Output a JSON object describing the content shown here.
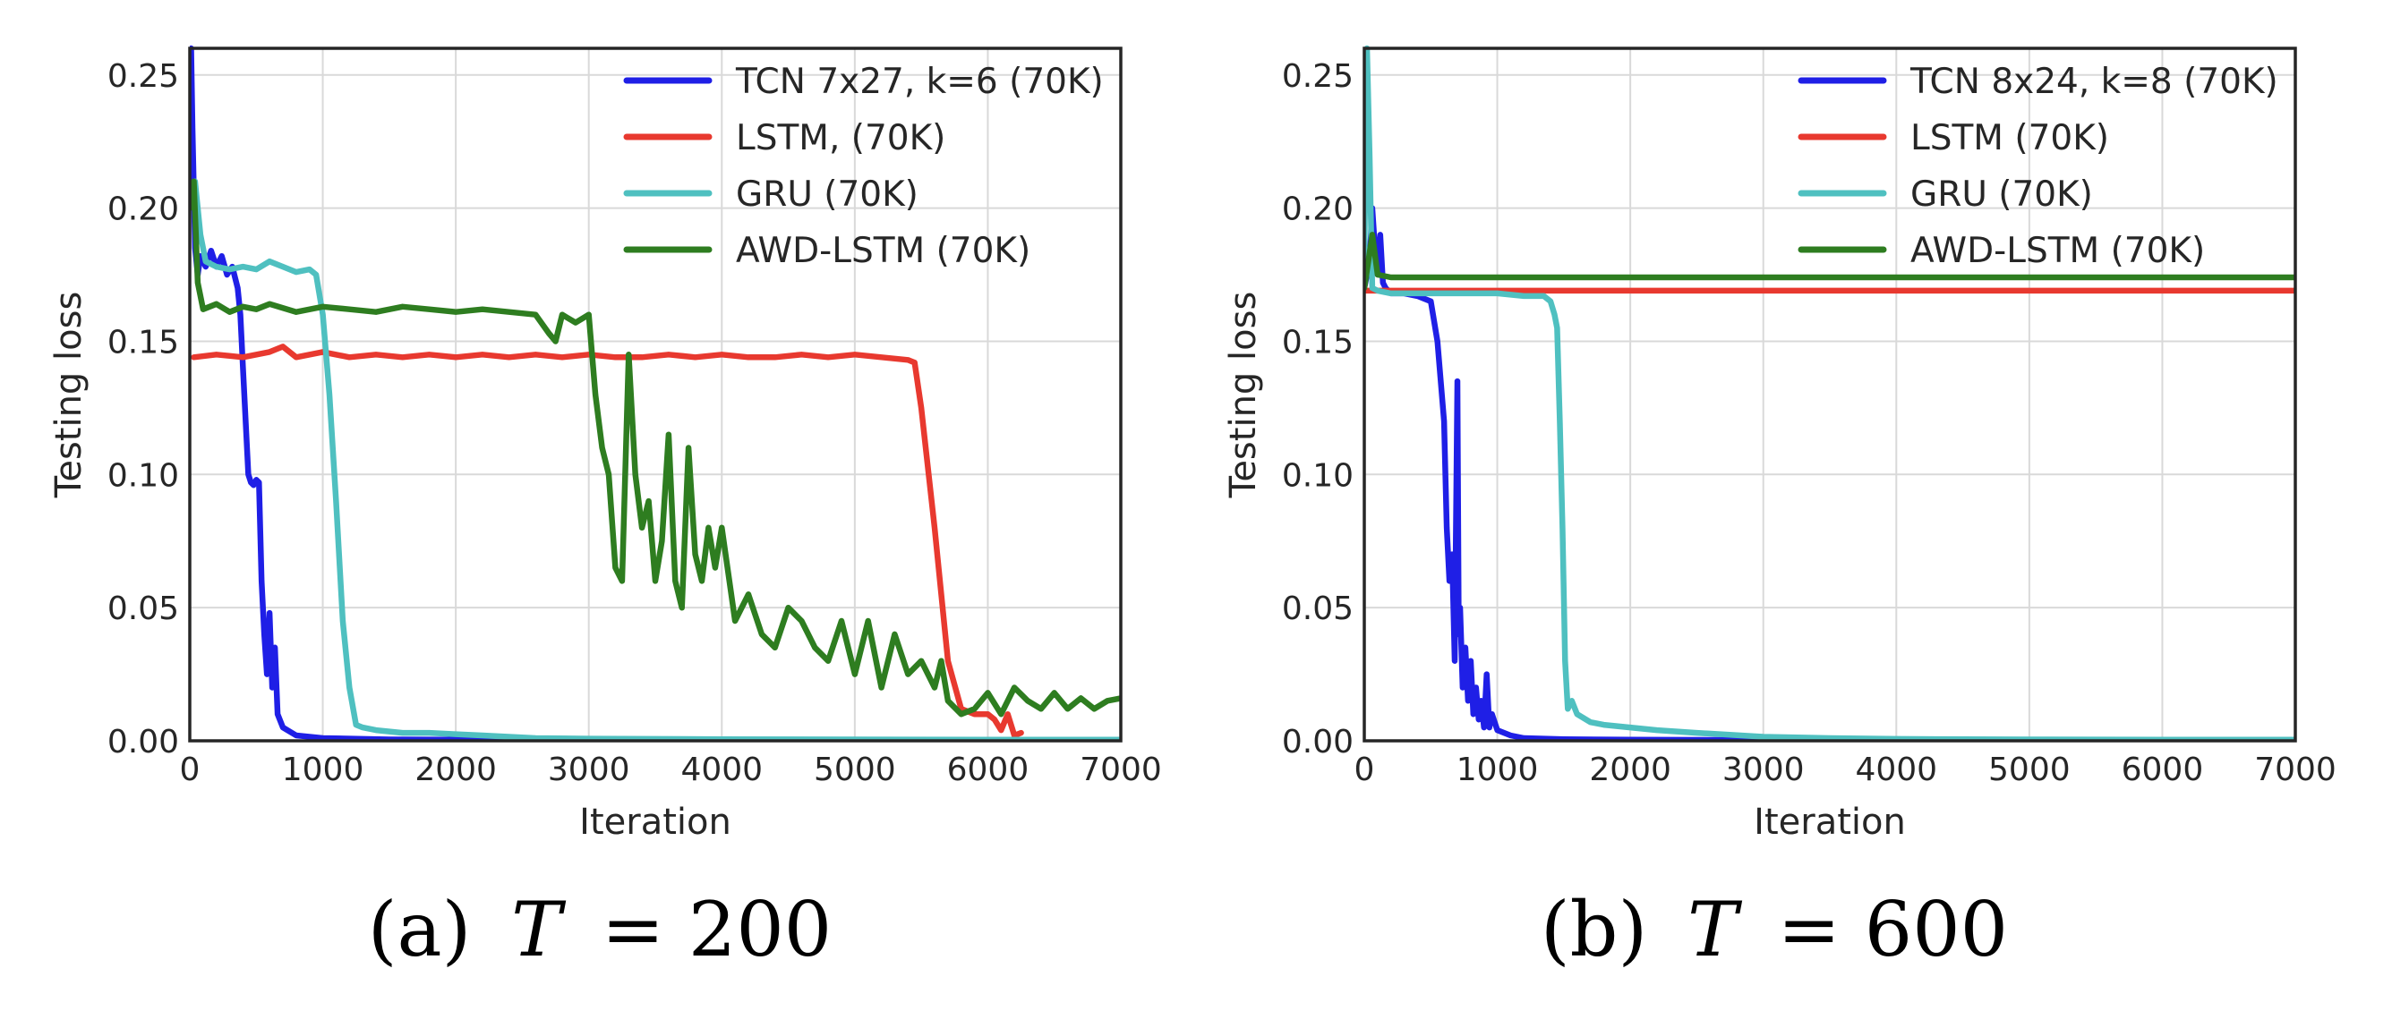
{
  "chart_data": [
    {
      "type": "line",
      "caption": "(a) T = 200",
      "caption_prefix": "(a)",
      "caption_symbol": "T",
      "caption_eq": "= 200",
      "xlabel": "Iteration",
      "ylabel": "Testing loss",
      "xlim": [
        0,
        7000
      ],
      "ylim": [
        0,
        0.26
      ],
      "xticks": [
        0,
        1000,
        2000,
        3000,
        4000,
        5000,
        6000,
        7000
      ],
      "yticks": [
        0.0,
        0.05,
        0.1,
        0.15,
        0.2,
        0.25
      ],
      "xtick_labels": [
        "0",
        "1000",
        "2000",
        "3000",
        "4000",
        "5000",
        "6000",
        "7000"
      ],
      "ytick_labels": [
        "0.00",
        "0.05",
        "0.10",
        "0.15",
        "0.20",
        "0.25"
      ],
      "grid": true,
      "legend_position": "top-right",
      "series": [
        {
          "name": "TCN 7x27, k=6 (70K)",
          "color": "#1f1fe6",
          "x": [
            0,
            10,
            20,
            40,
            60,
            80,
            120,
            160,
            200,
            240,
            280,
            320,
            360,
            380,
            400,
            420,
            440,
            460,
            480,
            500,
            520,
            540,
            560,
            580,
            600,
            620,
            640,
            660,
            700,
            800,
            1000,
            1500,
            2000,
            3000,
            4000,
            5000,
            6000,
            7000
          ],
          "y": [
            0.2,
            0.26,
            0.23,
            0.185,
            0.175,
            0.182,
            0.178,
            0.184,
            0.178,
            0.182,
            0.175,
            0.178,
            0.17,
            0.16,
            0.14,
            0.12,
            0.1,
            0.097,
            0.096,
            0.098,
            0.097,
            0.06,
            0.04,
            0.025,
            0.048,
            0.02,
            0.035,
            0.01,
            0.005,
            0.002,
            0.001,
            0.0005,
            0.0004,
            0.0003,
            0.0002,
            0.0002,
            0.0002,
            0.0002
          ]
        },
        {
          "name": "LSTM, (70K)",
          "color": "#e8392f",
          "x": [
            30,
            200,
            400,
            600,
            700,
            800,
            1000,
            1200,
            1400,
            1600,
            1800,
            2000,
            2200,
            2400,
            2600,
            2800,
            3000,
            3200,
            3400,
            3600,
            3800,
            4000,
            4200,
            4400,
            4600,
            4800,
            5000,
            5200,
            5400,
            5450,
            5500,
            5600,
            5700,
            5800,
            5900,
            6000,
            6050,
            6100,
            6150,
            6200,
            6250
          ],
          "y": [
            0.144,
            0.145,
            0.144,
            0.146,
            0.148,
            0.144,
            0.146,
            0.144,
            0.145,
            0.144,
            0.145,
            0.144,
            0.145,
            0.144,
            0.145,
            0.144,
            0.145,
            0.144,
            0.144,
            0.145,
            0.144,
            0.145,
            0.144,
            0.144,
            0.145,
            0.144,
            0.145,
            0.144,
            0.143,
            0.142,
            0.125,
            0.08,
            0.03,
            0.012,
            0.01,
            0.01,
            0.008,
            0.004,
            0.01,
            0.002,
            0.003
          ]
        },
        {
          "name": "GRU (70K)",
          "color": "#4fc0c0",
          "x": [
            0,
            40,
            80,
            120,
            200,
            300,
            400,
            500,
            600,
            700,
            800,
            900,
            950,
            1000,
            1050,
            1100,
            1150,
            1200,
            1250,
            1300,
            1400,
            1600,
            1800,
            2000,
            2200,
            2400,
            2600,
            3000,
            4000,
            5000,
            6000,
            7000
          ],
          "y": [
            0.2,
            0.21,
            0.19,
            0.18,
            0.178,
            0.177,
            0.178,
            0.177,
            0.18,
            0.178,
            0.176,
            0.177,
            0.175,
            0.16,
            0.13,
            0.09,
            0.045,
            0.02,
            0.006,
            0.005,
            0.004,
            0.003,
            0.003,
            0.0025,
            0.002,
            0.0015,
            0.001,
            0.0008,
            0.0006,
            0.0005,
            0.0004,
            0.0004
          ]
        },
        {
          "name": "AWD-LSTM (70K)",
          "color": "#2e7d20",
          "x": [
            0,
            30,
            60,
            100,
            200,
            300,
            400,
            500,
            600,
            800,
            1000,
            1200,
            1400,
            1600,
            1800,
            2000,
            2200,
            2400,
            2600,
            2700,
            2750,
            2800,
            2900,
            3000,
            3050,
            3100,
            3150,
            3200,
            3250,
            3300,
            3350,
            3400,
            3450,
            3500,
            3550,
            3600,
            3650,
            3700,
            3750,
            3800,
            3850,
            3900,
            3950,
            4000,
            4100,
            4200,
            4300,
            4400,
            4500,
            4600,
            4700,
            4800,
            4900,
            5000,
            5100,
            5200,
            5300,
            5400,
            5500,
            5600,
            5650,
            5700,
            5800,
            5900,
            6000,
            6100,
            6200,
            6300,
            6400,
            6500,
            6600,
            6700,
            6800,
            6900,
            7000
          ],
          "y": [
            0.2,
            0.21,
            0.172,
            0.162,
            0.164,
            0.161,
            0.163,
            0.162,
            0.164,
            0.161,
            0.163,
            0.162,
            0.161,
            0.163,
            0.162,
            0.161,
            0.162,
            0.161,
            0.16,
            0.153,
            0.15,
            0.16,
            0.157,
            0.16,
            0.13,
            0.11,
            0.1,
            0.065,
            0.06,
            0.145,
            0.1,
            0.08,
            0.09,
            0.06,
            0.075,
            0.115,
            0.06,
            0.05,
            0.11,
            0.07,
            0.06,
            0.08,
            0.065,
            0.08,
            0.045,
            0.055,
            0.04,
            0.035,
            0.05,
            0.045,
            0.035,
            0.03,
            0.045,
            0.025,
            0.045,
            0.02,
            0.04,
            0.025,
            0.03,
            0.02,
            0.03,
            0.015,
            0.01,
            0.012,
            0.018,
            0.01,
            0.02,
            0.015,
            0.012,
            0.018,
            0.012,
            0.016,
            0.012,
            0.015,
            0.016
          ]
        }
      ]
    },
    {
      "type": "line",
      "caption": "(b) T = 600",
      "caption_prefix": "(b)",
      "caption_symbol": "T",
      "caption_eq": "= 600",
      "xlabel": "Iteration",
      "ylabel": "Testing loss",
      "xlim": [
        0,
        7000
      ],
      "ylim": [
        0,
        0.26
      ],
      "xticks": [
        0,
        1000,
        2000,
        3000,
        4000,
        5000,
        6000,
        7000
      ],
      "yticks": [
        0.0,
        0.05,
        0.1,
        0.15,
        0.2,
        0.25
      ],
      "xtick_labels": [
        "0",
        "1000",
        "2000",
        "3000",
        "4000",
        "5000",
        "6000",
        "7000"
      ],
      "ytick_labels": [
        "0.00",
        "0.05",
        "0.10",
        "0.15",
        "0.20",
        "0.25"
      ],
      "grid": true,
      "legend_position": "top-right",
      "series": [
        {
          "name": "TCN 8x24, k=8 (70K)",
          "color": "#1f1fe6",
          "x": [
            0,
            20,
            40,
            60,
            80,
            100,
            120,
            140,
            160,
            200,
            300,
            400,
            500,
            550,
            600,
            620,
            640,
            660,
            680,
            700,
            710,
            720,
            740,
            760,
            780,
            800,
            820,
            840,
            860,
            880,
            900,
            920,
            940,
            960,
            1000,
            1100,
            1200,
            1500,
            2000,
            3000,
            4000,
            5000,
            6000,
            7000
          ],
          "y": [
            0.17,
            0.175,
            0.18,
            0.2,
            0.185,
            0.175,
            0.19,
            0.172,
            0.17,
            0.168,
            0.168,
            0.167,
            0.165,
            0.15,
            0.12,
            0.08,
            0.06,
            0.07,
            0.03,
            0.135,
            0.04,
            0.05,
            0.02,
            0.035,
            0.015,
            0.03,
            0.01,
            0.02,
            0.008,
            0.015,
            0.005,
            0.025,
            0.005,
            0.01,
            0.004,
            0.002,
            0.001,
            0.0006,
            0.0004,
            0.0003,
            0.0002,
            0.0002,
            0.0002,
            0.0002
          ]
        },
        {
          "name": "LSTM (70K)",
          "color": "#e8392f",
          "x": [
            0,
            500,
            1000,
            2000,
            3000,
            4000,
            5000,
            6000,
            7000
          ],
          "y": [
            0.169,
            0.169,
            0.169,
            0.169,
            0.169,
            0.169,
            0.169,
            0.169,
            0.169
          ]
        },
        {
          "name": "GRU (70K)",
          "color": "#4fc0c0",
          "x": [
            0,
            20,
            40,
            60,
            100,
            200,
            400,
            600,
            800,
            1000,
            1200,
            1350,
            1400,
            1430,
            1450,
            1470,
            1490,
            1510,
            1530,
            1560,
            1600,
            1700,
            1800,
            2000,
            2200,
            2500,
            3000,
            3500,
            4000,
            5000,
            6000,
            7000
          ],
          "y": [
            0.18,
            0.26,
            0.22,
            0.17,
            0.169,
            0.168,
            0.168,
            0.168,
            0.168,
            0.168,
            0.167,
            0.167,
            0.165,
            0.16,
            0.155,
            0.12,
            0.08,
            0.03,
            0.012,
            0.015,
            0.01,
            0.007,
            0.006,
            0.005,
            0.004,
            0.003,
            0.0015,
            0.001,
            0.0007,
            0.0005,
            0.0004,
            0.0004
          ]
        },
        {
          "name": "AWD-LSTM (70K)",
          "color": "#2e7d20",
          "x": [
            0,
            30,
            60,
            100,
            200,
            400,
            800,
            1500,
            2000,
            3000,
            4000,
            5000,
            6000,
            7000
          ],
          "y": [
            0.17,
            0.18,
            0.19,
            0.175,
            0.174,
            0.174,
            0.174,
            0.174,
            0.174,
            0.174,
            0.174,
            0.174,
            0.174,
            0.174
          ]
        }
      ]
    }
  ]
}
